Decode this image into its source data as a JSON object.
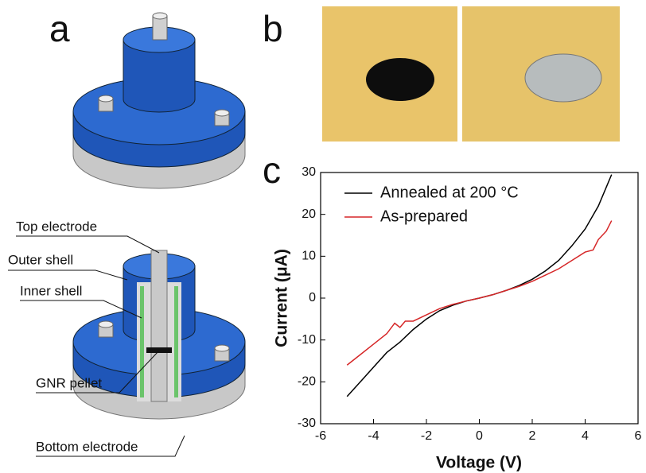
{
  "panel_labels": [
    "a",
    "b",
    "c"
  ],
  "diagram": {
    "labels": [
      "Top electrode",
      "Outer shell",
      "Inner shell",
      "GNR pellet",
      "Bottom electrode"
    ]
  },
  "chart_data": {
    "type": "line",
    "xlabel": "Voltage (V)",
    "ylabel": "Current (μA)",
    "xlim": [
      -6,
      6
    ],
    "ylim": [
      -30,
      30
    ],
    "xticks": [
      -6,
      -4,
      -2,
      0,
      2,
      4,
      6
    ],
    "yticks": [
      -30,
      -20,
      -10,
      0,
      10,
      20,
      30
    ],
    "legend": "upper left",
    "series": [
      {
        "name": "Annealed at 200 °C",
        "color": "#000000",
        "x": [
          -5,
          -4.5,
          -4,
          -3.5,
          -3,
          -2.5,
          -2,
          -1.5,
          -1,
          -0.5,
          0,
          0.5,
          1,
          1.5,
          2,
          2.5,
          3,
          3.5,
          4,
          4.5,
          5
        ],
        "values": [
          -23.5,
          -20,
          -16.5,
          -13,
          -10.5,
          -7.5,
          -5,
          -3,
          -1.7,
          -0.7,
          0,
          0.8,
          1.8,
          3,
          4.5,
          6.5,
          9,
          12.5,
          16.5,
          22,
          29.5
        ]
      },
      {
        "name": "As-prepared",
        "color": "#d62728",
        "x": [
          -5,
          -4.5,
          -4,
          -3.5,
          -3.2,
          -3,
          -2.8,
          -2.5,
          -2,
          -1.5,
          -1,
          -0.5,
          0,
          0.5,
          1,
          1.5,
          2,
          2.5,
          3,
          3.5,
          4,
          4.3,
          4.5,
          4.8,
          5
        ],
        "values": [
          -16,
          -13.5,
          -11,
          -8.5,
          -6,
          -7,
          -5.5,
          -5.5,
          -4,
          -2.5,
          -1.5,
          -0.7,
          0,
          0.8,
          1.8,
          2.8,
          4,
          5.5,
          7,
          9,
          11,
          11.5,
          14,
          16,
          18.5
        ]
      }
    ]
  }
}
